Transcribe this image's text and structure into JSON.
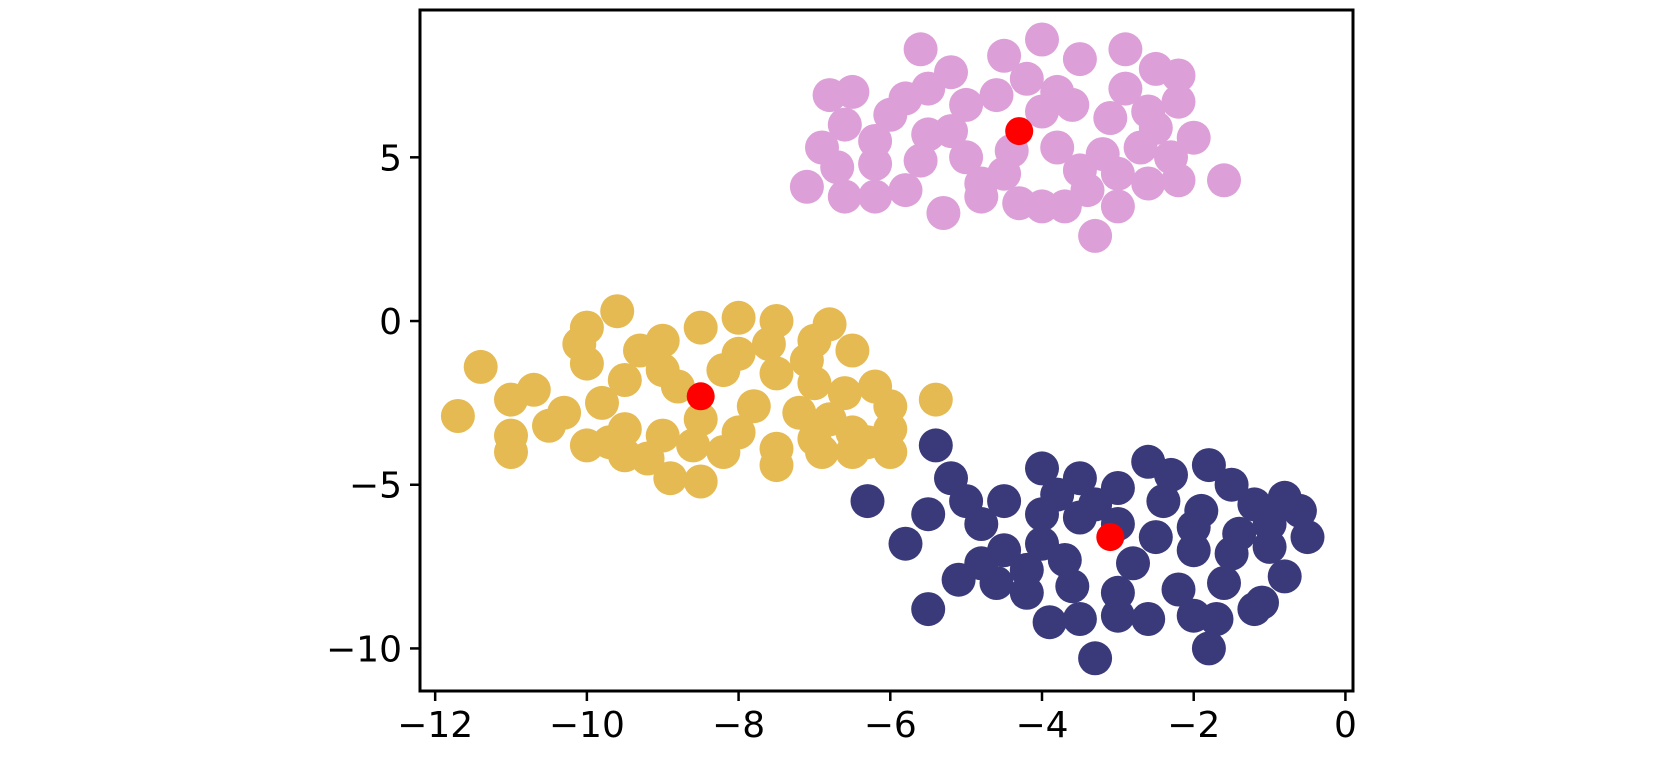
{
  "chart_data": {
    "type": "scatter",
    "title": "",
    "xlabel": "",
    "ylabel": "",
    "xlim": [
      -12.2,
      0.1
    ],
    "ylim": [
      -11.3,
      9.5
    ],
    "x_ticks": [
      -12,
      -10,
      -8,
      -6,
      -4,
      -2,
      0
    ],
    "y_ticks": [
      5,
      0,
      -5,
      -10
    ],
    "x_tick_labels": [
      "−12",
      "−10",
      "−8",
      "−6",
      "−4",
      "−2",
      "0"
    ],
    "y_tick_labels": [
      "5",
      "0",
      "−5",
      "−10"
    ],
    "grid": false,
    "legend": "none",
    "series": [
      {
        "color": "#dd9fd8",
        "points": [
          [
            -5.6,
            8.3
          ],
          [
            -4.0,
            8.6
          ],
          [
            -2.9,
            8.3
          ],
          [
            -6.8,
            6.9
          ],
          [
            -6.5,
            7.0
          ],
          [
            -5.2,
            7.6
          ],
          [
            -4.5,
            8.1
          ],
          [
            -3.5,
            8.0
          ],
          [
            -2.5,
            7.7
          ],
          [
            -2.2,
            7.5
          ],
          [
            -6.9,
            5.3
          ],
          [
            -6.6,
            6.0
          ],
          [
            -6.0,
            6.3
          ],
          [
            -5.5,
            5.7
          ],
          [
            -5.0,
            6.6
          ],
          [
            -4.6,
            6.9
          ],
          [
            -4.0,
            6.4
          ],
          [
            -3.6,
            6.6
          ],
          [
            -3.1,
            6.2
          ],
          [
            -2.6,
            6.4
          ],
          [
            -2.2,
            6.7
          ],
          [
            -2.0,
            5.6
          ],
          [
            -2.3,
            5.0
          ],
          [
            -2.7,
            5.3
          ],
          [
            -3.2,
            5.1
          ],
          [
            -3.8,
            5.3
          ],
          [
            -4.4,
            5.2
          ],
          [
            -5.0,
            5.0
          ],
          [
            -5.6,
            4.9
          ],
          [
            -6.2,
            4.8
          ],
          [
            -6.7,
            4.7
          ],
          [
            -7.1,
            4.1
          ],
          [
            -6.6,
            3.8
          ],
          [
            -6.2,
            3.8
          ],
          [
            -5.8,
            4.0
          ],
          [
            -5.3,
            3.3
          ],
          [
            -4.8,
            3.8
          ],
          [
            -4.3,
            3.6
          ],
          [
            -4.0,
            3.5
          ],
          [
            -3.7,
            3.5
          ],
          [
            -3.4,
            4.0
          ],
          [
            -3.0,
            3.5
          ],
          [
            -2.6,
            4.2
          ],
          [
            -2.2,
            4.3
          ],
          [
            -1.6,
            4.3
          ],
          [
            -3.3,
            2.6
          ],
          [
            -4.5,
            4.5
          ],
          [
            -5.2,
            5.8
          ],
          [
            -3.8,
            7.0
          ],
          [
            -2.9,
            7.1
          ],
          [
            -4.2,
            7.4
          ],
          [
            -5.5,
            7.1
          ],
          [
            -6.2,
            5.5
          ],
          [
            -3.5,
            4.6
          ],
          [
            -2.5,
            5.9
          ],
          [
            -4.8,
            4.2
          ],
          [
            -3.0,
            4.5
          ],
          [
            -5.8,
            6.8
          ]
        ],
        "center": [
          -4.3,
          5.8
        ]
      },
      {
        "color": "#e6ba52",
        "points": [
          [
            -9.6,
            0.3
          ],
          [
            -8.0,
            0.1
          ],
          [
            -7.5,
            0.0
          ],
          [
            -6.8,
            -0.1
          ],
          [
            -10.0,
            -0.2
          ],
          [
            -10.1,
            -0.7
          ],
          [
            -9.0,
            -0.6
          ],
          [
            -8.5,
            -0.2
          ],
          [
            -7.0,
            -0.6
          ],
          [
            -6.5,
            -0.9
          ],
          [
            -11.4,
            -1.4
          ],
          [
            -10.7,
            -2.1
          ],
          [
            -11.0,
            -2.4
          ],
          [
            -10.0,
            -1.3
          ],
          [
            -9.5,
            -1.8
          ],
          [
            -9.0,
            -1.5
          ],
          [
            -8.0,
            -1.0
          ],
          [
            -7.5,
            -1.6
          ],
          [
            -7.0,
            -1.9
          ],
          [
            -6.6,
            -2.2
          ],
          [
            -6.2,
            -2.0
          ],
          [
            -6.0,
            -2.6
          ],
          [
            -5.4,
            -2.4
          ],
          [
            -11.7,
            -2.9
          ],
          [
            -11.0,
            -3.5
          ],
          [
            -10.5,
            -3.2
          ],
          [
            -10.0,
            -3.8
          ],
          [
            -9.5,
            -3.3
          ],
          [
            -9.0,
            -3.5
          ],
          [
            -8.5,
            -3.0
          ],
          [
            -8.0,
            -3.4
          ],
          [
            -7.5,
            -3.9
          ],
          [
            -7.0,
            -3.6
          ],
          [
            -6.5,
            -3.4
          ],
          [
            -6.0,
            -3.3
          ],
          [
            -11.0,
            -4.0
          ],
          [
            -9.5,
            -4.1
          ],
          [
            -9.2,
            -4.2
          ],
          [
            -8.9,
            -4.8
          ],
          [
            -8.5,
            -4.9
          ],
          [
            -8.2,
            -4.0
          ],
          [
            -7.5,
            -4.4
          ],
          [
            -6.9,
            -4.0
          ],
          [
            -6.5,
            -4.0
          ],
          [
            -6.0,
            -4.0
          ],
          [
            -9.8,
            -2.5
          ],
          [
            -8.8,
            -2.0
          ],
          [
            -7.8,
            -2.6
          ],
          [
            -7.2,
            -2.8
          ],
          [
            -6.8,
            -3.0
          ],
          [
            -9.3,
            -0.9
          ],
          [
            -8.2,
            -1.5
          ],
          [
            -10.3,
            -2.8
          ],
          [
            -7.6,
            -0.7
          ],
          [
            -8.6,
            -3.8
          ],
          [
            -9.7,
            -3.7
          ],
          [
            -6.3,
            -3.7
          ],
          [
            -7.1,
            -1.2
          ]
        ],
        "center": [
          -8.5,
          -2.3
        ]
      },
      {
        "color": "#3a3a7a",
        "points": [
          [
            -5.4,
            -3.8
          ],
          [
            -5.2,
            -4.8
          ],
          [
            -6.3,
            -5.5
          ],
          [
            -5.5,
            -5.9
          ],
          [
            -5.8,
            -6.8
          ],
          [
            -5.5,
            -8.8
          ],
          [
            -5.0,
            -5.5
          ],
          [
            -5.1,
            -7.9
          ],
          [
            -4.8,
            -6.2
          ],
          [
            -4.5,
            -7.0
          ],
          [
            -4.2,
            -7.6
          ],
          [
            -4.0,
            -4.5
          ],
          [
            -3.8,
            -5.3
          ],
          [
            -3.5,
            -4.8
          ],
          [
            -3.0,
            -5.1
          ],
          [
            -2.6,
            -4.3
          ],
          [
            -2.3,
            -4.7
          ],
          [
            -1.8,
            -4.4
          ],
          [
            -1.5,
            -5.0
          ],
          [
            -1.2,
            -5.6
          ],
          [
            -0.8,
            -5.4
          ],
          [
            -0.6,
            -5.8
          ],
          [
            -0.5,
            -6.6
          ],
          [
            -1.0,
            -6.9
          ],
          [
            -1.5,
            -7.1
          ],
          [
            -2.0,
            -7.0
          ],
          [
            -2.5,
            -6.6
          ],
          [
            -3.0,
            -6.2
          ],
          [
            -3.5,
            -6.0
          ],
          [
            -4.0,
            -5.9
          ],
          [
            -4.5,
            -5.5
          ],
          [
            -0.8,
            -7.8
          ],
          [
            -1.1,
            -8.6
          ],
          [
            -1.2,
            -8.8
          ],
          [
            -1.7,
            -9.1
          ],
          [
            -2.0,
            -9.0
          ],
          [
            -2.6,
            -9.1
          ],
          [
            -3.0,
            -9.0
          ],
          [
            -3.5,
            -9.1
          ],
          [
            -3.9,
            -9.2
          ],
          [
            -4.6,
            -8.0
          ],
          [
            -4.2,
            -8.3
          ],
          [
            -3.3,
            -10.3
          ],
          [
            -1.8,
            -10.0
          ],
          [
            -1.6,
            -8.0
          ],
          [
            -2.2,
            -8.2
          ],
          [
            -3.0,
            -8.3
          ],
          [
            -3.6,
            -8.1
          ],
          [
            -4.0,
            -6.8
          ],
          [
            -2.8,
            -7.4
          ],
          [
            -1.9,
            -5.8
          ],
          [
            -3.3,
            -5.6
          ],
          [
            -2.4,
            -5.5
          ],
          [
            -1.0,
            -6.2
          ],
          [
            -4.8,
            -7.4
          ],
          [
            -3.7,
            -7.3
          ],
          [
            -2.0,
            -6.3
          ],
          [
            -1.4,
            -6.5
          ]
        ],
        "center": [
          -3.1,
          -6.6
        ]
      }
    ],
    "centers_color": "#ff0000"
  }
}
